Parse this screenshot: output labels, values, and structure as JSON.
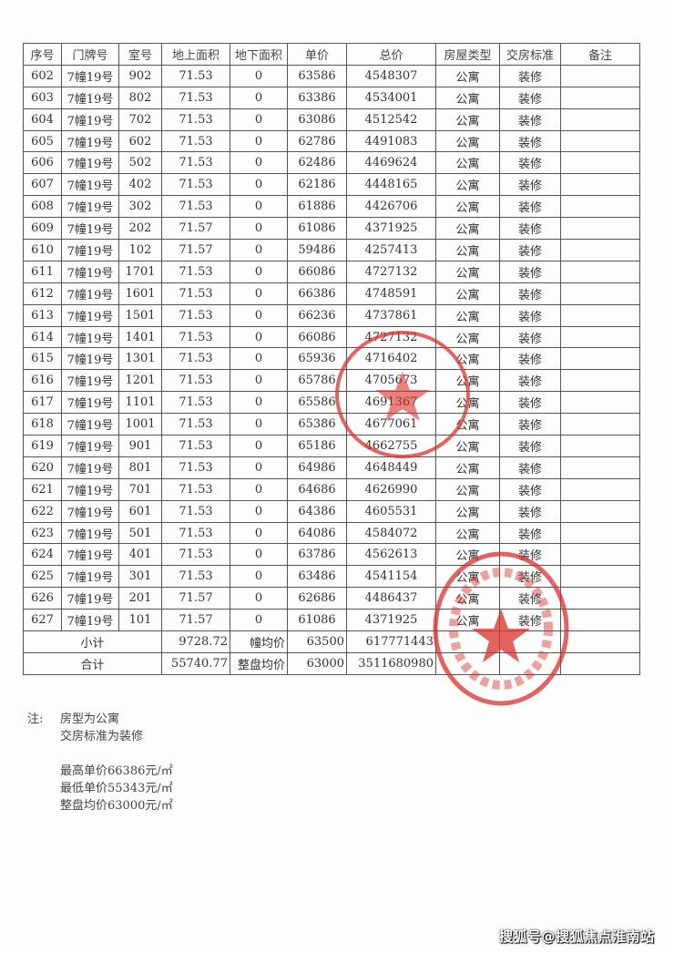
{
  "table": {
    "headers": [
      "序号",
      "门牌号",
      "室号",
      "地上面积",
      "地下面积",
      "单价",
      "总价",
      "房屋类型",
      "交房标准",
      "备注"
    ],
    "rows": [
      [
        "602",
        "7幢19号",
        "902",
        "71.53",
        "0",
        "63586",
        "4548307",
        "公寓",
        "装修",
        ""
      ],
      [
        "603",
        "7幢19号",
        "802",
        "71.53",
        "0",
        "63386",
        "4534001",
        "公寓",
        "装修",
        ""
      ],
      [
        "604",
        "7幢19号",
        "702",
        "71.53",
        "0",
        "63086",
        "4512542",
        "公寓",
        "装修",
        ""
      ],
      [
        "605",
        "7幢19号",
        "602",
        "71.53",
        "0",
        "62786",
        "4491083",
        "公寓",
        "装修",
        ""
      ],
      [
        "606",
        "7幢19号",
        "502",
        "71.53",
        "0",
        "62486",
        "4469624",
        "公寓",
        "装修",
        ""
      ],
      [
        "607",
        "7幢19号",
        "402",
        "71.53",
        "0",
        "62186",
        "4448165",
        "公寓",
        "装修",
        ""
      ],
      [
        "608",
        "7幢19号",
        "302",
        "71.53",
        "0",
        "61886",
        "4426706",
        "公寓",
        "装修",
        ""
      ],
      [
        "609",
        "7幢19号",
        "202",
        "71.57",
        "0",
        "61086",
        "4371925",
        "公寓",
        "装修",
        ""
      ],
      [
        "610",
        "7幢19号",
        "102",
        "71.57",
        "0",
        "59486",
        "4257413",
        "公寓",
        "装修",
        ""
      ],
      [
        "611",
        "7幢19号",
        "1701",
        "71.53",
        "0",
        "66086",
        "4727132",
        "公寓",
        "装修",
        ""
      ],
      [
        "612",
        "7幢19号",
        "1601",
        "71.53",
        "0",
        "66386",
        "4748591",
        "公寓",
        "装修",
        ""
      ],
      [
        "613",
        "7幢19号",
        "1501",
        "71.53",
        "0",
        "66236",
        "4737861",
        "公寓",
        "装修",
        ""
      ],
      [
        "614",
        "7幢19号",
        "1401",
        "71.53",
        "0",
        "66086",
        "4727132",
        "公寓",
        "装修",
        ""
      ],
      [
        "615",
        "7幢19号",
        "1301",
        "71.53",
        "0",
        "65936",
        "4716402",
        "公寓",
        "装修",
        ""
      ],
      [
        "616",
        "7幢19号",
        "1201",
        "71.53",
        "0",
        "65786",
        "4705673",
        "公寓",
        "装修",
        ""
      ],
      [
        "617",
        "7幢19号",
        "1101",
        "71.53",
        "0",
        "65586",
        "4691367",
        "公寓",
        "装修",
        ""
      ],
      [
        "618",
        "7幢19号",
        "1001",
        "71.53",
        "0",
        "65386",
        "4677061",
        "公寓",
        "装修",
        ""
      ],
      [
        "619",
        "7幢19号",
        "901",
        "71.53",
        "0",
        "65186",
        "4662755",
        "公寓",
        "装修",
        ""
      ],
      [
        "620",
        "7幢19号",
        "801",
        "71.53",
        "0",
        "64986",
        "4648449",
        "公寓",
        "装修",
        ""
      ],
      [
        "621",
        "7幢19号",
        "701",
        "71.53",
        "0",
        "64686",
        "4626990",
        "公寓",
        "装修",
        ""
      ],
      [
        "622",
        "7幢19号",
        "601",
        "71.53",
        "0",
        "64386",
        "4605531",
        "公寓",
        "装修",
        ""
      ],
      [
        "623",
        "7幢19号",
        "501",
        "71.53",
        "0",
        "64086",
        "4584072",
        "公寓",
        "装修",
        ""
      ],
      [
        "624",
        "7幢19号",
        "401",
        "71.53",
        "0",
        "63786",
        "4562613",
        "公寓",
        "装修",
        ""
      ],
      [
        "625",
        "7幢19号",
        "301",
        "71.53",
        "0",
        "63486",
        "4541154",
        "公寓",
        "装修",
        ""
      ],
      [
        "626",
        "7幢19号",
        "201",
        "71.57",
        "0",
        "62686",
        "4486437",
        "公寓",
        "装修",
        ""
      ],
      [
        "627",
        "7幢19号",
        "101",
        "71.57",
        "0",
        "61086",
        "4371925",
        "公寓",
        "装修",
        ""
      ]
    ],
    "subtotal": {
      "label": "小计",
      "area": "9728.72",
      "avg_label": "幢均价",
      "avg": "63500",
      "total": "617771443"
    },
    "grand_total": {
      "label": "合计",
      "area": "55740.77",
      "avg_label": "整盘均价",
      "avg": "63000",
      "total": "3511680980"
    }
  },
  "notes": {
    "label": "注:",
    "lines": [
      "房型为公寓",
      "交房标准为装修"
    ],
    "prices": [
      "最高单价66386元/㎡",
      "最低单价55343元/㎡",
      "整盘均价63000元/㎡"
    ]
  },
  "watermark": "搜狐号@搜狐焦点淮南站",
  "colors": {
    "stamp": "#d9302c"
  }
}
